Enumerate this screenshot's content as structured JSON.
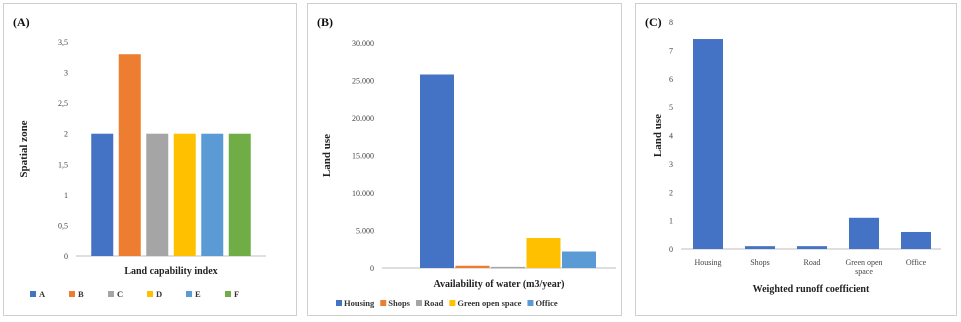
{
  "colors": {
    "blue": "#4472c4",
    "orange": "#ed7d31",
    "gray": "#a5a5a5",
    "yellow": "#ffc000",
    "lightblue": "#5b9bd5",
    "green": "#70ad47",
    "axis": "#bfbfbf"
  },
  "chart_data": [
    {
      "id": "A",
      "panel_label": "(A)",
      "type": "bar",
      "xlabel": "Land capability index",
      "ylabel": "Spatial zone",
      "ylim": [
        0,
        3.5
      ],
      "yticks": [
        "0",
        "0,5",
        "1",
        "1,5",
        "2",
        "2,5",
        "3",
        "3,5"
      ],
      "grid": false,
      "legend_position": "bottom",
      "series": [
        {
          "name": "A",
          "values": [
            2
          ],
          "color": "#4472c4"
        },
        {
          "name": "B",
          "values": [
            3.3
          ],
          "color": "#ed7d31"
        },
        {
          "name": "C",
          "values": [
            2
          ],
          "color": "#a5a5a5"
        },
        {
          "name": "D",
          "values": [
            2
          ],
          "color": "#ffc000"
        },
        {
          "name": "E",
          "values": [
            2
          ],
          "color": "#5b9bd5"
        },
        {
          "name": "F",
          "values": [
            2
          ],
          "color": "#70ad47"
        }
      ]
    },
    {
      "id": "B",
      "panel_label": "(B)",
      "type": "bar",
      "xlabel": "Availability of water (m3/year)",
      "ylabel": "Land use",
      "ylim": [
        0,
        30000
      ],
      "yticks": [
        "0",
        "5.000",
        "10.000",
        "15.000",
        "20.000",
        "25.000",
        "30.000"
      ],
      "grid": false,
      "legend_position": "bottom",
      "series": [
        {
          "name": "Housing",
          "values": [
            25800
          ],
          "color": "#4472c4"
        },
        {
          "name": "Shops",
          "values": [
            300
          ],
          "color": "#ed7d31"
        },
        {
          "name": "Road",
          "values": [
            150
          ],
          "color": "#a5a5a5"
        },
        {
          "name": "Green open space",
          "values": [
            4000
          ],
          "color": "#ffc000"
        },
        {
          "name": "Office",
          "values": [
            2200
          ],
          "color": "#5b9bd5"
        }
      ]
    },
    {
      "id": "C",
      "panel_label": "(C)",
      "type": "bar",
      "xlabel": "Weighted runoff coefficient",
      "ylabel": "Land use",
      "ylim": [
        0,
        8
      ],
      "yticks": [
        "0",
        "1",
        "2",
        "3",
        "4",
        "5",
        "6",
        "7",
        "8"
      ],
      "grid": false,
      "categories": [
        "Housing",
        "Shops",
        "Road",
        "Green open space",
        "Office"
      ],
      "series": [
        {
          "values": [
            7.4,
            0.1,
            0.1,
            1.1,
            0.6
          ],
          "color": "#4472c4"
        }
      ]
    }
  ]
}
